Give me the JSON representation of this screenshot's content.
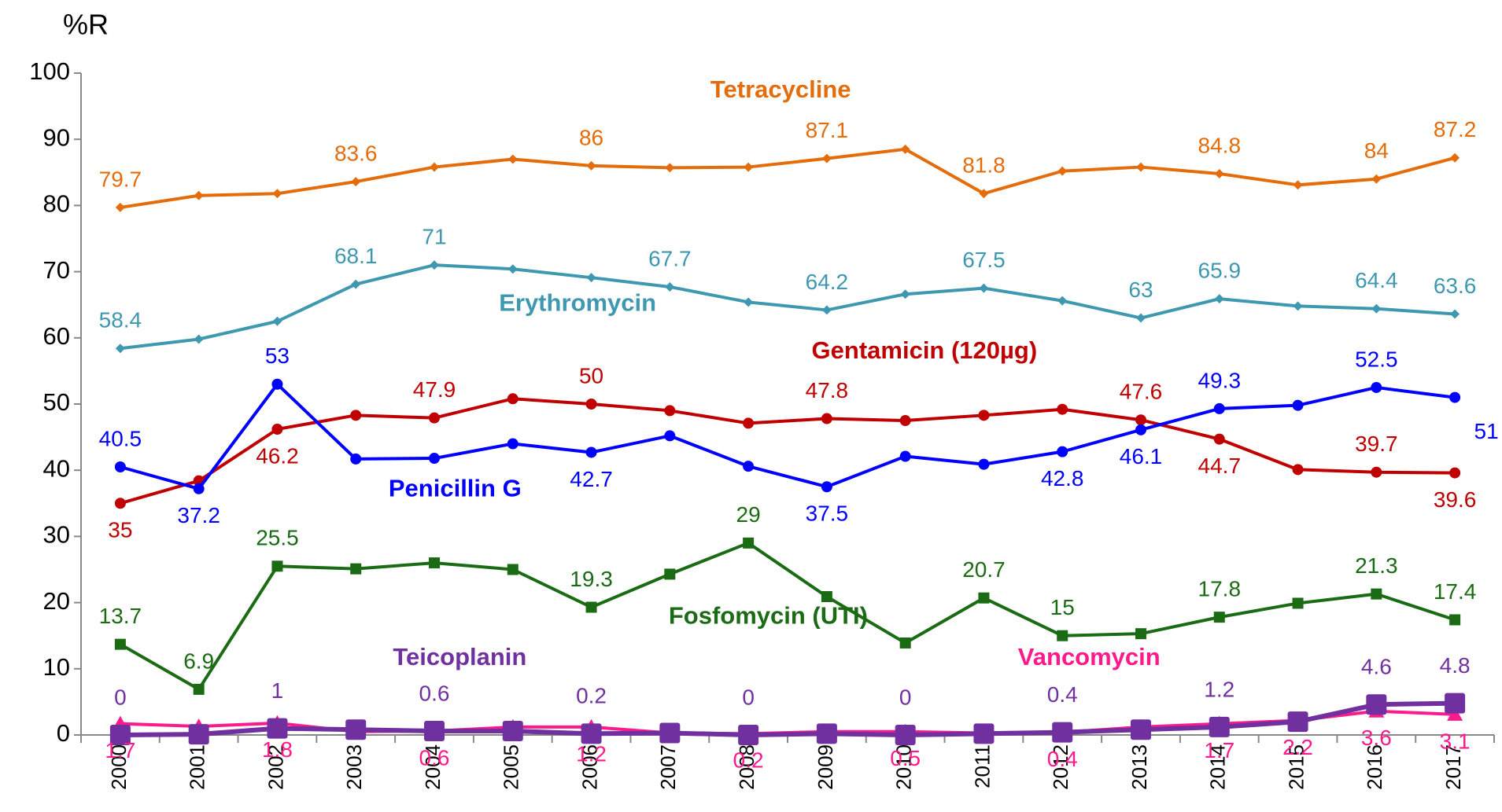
{
  "chart_data": {
    "type": "line",
    "y_label": "%R",
    "categories": [
      "2000",
      "2001",
      "2002",
      "2003",
      "2004",
      "2005",
      "2006",
      "2007",
      "2008",
      "2009",
      "2010",
      "2011",
      "2012",
      "2013",
      "2014",
      "2015",
      "2016",
      "2017"
    ],
    "ylim": [
      0,
      100
    ],
    "yticks": [
      0,
      10,
      20,
      30,
      40,
      50,
      60,
      70,
      80,
      90,
      100
    ],
    "series": [
      {
        "name": "Tetracycline",
        "color": "#e46c0a",
        "marker": "diamond",
        "values": [
          79.7,
          81.5,
          81.8,
          83.6,
          85.8,
          87.0,
          86,
          85.7,
          85.8,
          87.1,
          88.5,
          81.8,
          85.2,
          85.8,
          84.8,
          83.1,
          84,
          87.2
        ],
        "value_labels": [
          "79.7",
          null,
          null,
          "83.6",
          null,
          null,
          "86",
          null,
          null,
          "87.1",
          null,
          "81.8",
          null,
          null,
          "84.8",
          null,
          "84",
          "87.2"
        ]
      },
      {
        "name": "Erythromycin",
        "color": "#3e98b0",
        "marker": "diamond",
        "values": [
          58.4,
          59.8,
          62.5,
          68.1,
          71,
          70.4,
          69.1,
          67.7,
          65.4,
          64.2,
          66.6,
          67.5,
          65.6,
          63,
          65.9,
          64.8,
          64.4,
          63.6
        ],
        "value_labels": [
          "58.4",
          null,
          null,
          "68.1",
          "71",
          null,
          null,
          "67.7",
          null,
          "64.2",
          null,
          "67.5",
          null,
          "63",
          "65.9",
          null,
          "64.4",
          "63.6"
        ]
      },
      {
        "name": "Gentamicin (120µg)",
        "color": "#c00000",
        "marker": "circle",
        "values": [
          35,
          38.4,
          46.2,
          48.3,
          47.9,
          50.8,
          50,
          49,
          47.1,
          47.8,
          47.5,
          48.3,
          49.2,
          47.6,
          44.7,
          40.1,
          39.7,
          39.6
        ],
        "value_labels": [
          "35",
          null,
          "46.2",
          null,
          "47.9",
          null,
          "50",
          null,
          null,
          "47.8",
          null,
          null,
          null,
          "47.6",
          "44.7",
          null,
          "39.7",
          "39.6"
        ]
      },
      {
        "name": "Penicillin G",
        "color": "#0000ff",
        "marker": "circle",
        "values": [
          40.5,
          37.2,
          53,
          41.7,
          41.8,
          44,
          42.7,
          45.2,
          40.6,
          37.5,
          42.1,
          40.9,
          42.8,
          46.1,
          49.3,
          49.8,
          52.5,
          51
        ],
        "value_labels": [
          "40.5",
          "37.2",
          "53",
          null,
          null,
          null,
          "42.7",
          null,
          null,
          "37.5",
          null,
          null,
          "42.8",
          "46.1",
          "49.3",
          null,
          "52.5",
          "51"
        ]
      },
      {
        "name": "Fosfomycin (UTI)",
        "color": "#1a6b14",
        "marker": "square",
        "values": [
          13.7,
          6.9,
          25.5,
          25.1,
          26,
          25,
          19.3,
          24.3,
          29,
          20.9,
          13.9,
          20.7,
          15,
          15.3,
          17.8,
          19.9,
          21.3,
          17.4
        ],
        "value_labels": [
          "13.7",
          "6.9",
          "25.5",
          null,
          null,
          null,
          "19.3",
          null,
          "29",
          null,
          null,
          "20.7",
          "15",
          null,
          "17.8",
          null,
          "21.3",
          "17.4"
        ]
      },
      {
        "name": "Vancomycin",
        "color": "#ff1a8c",
        "marker": "triangle",
        "values": [
          1.7,
          1.3,
          1.8,
          0.5,
          0.6,
          1.2,
          1.2,
          0.3,
          0.2,
          0.5,
          0.5,
          0.3,
          0.4,
          1.2,
          1.7,
          2.2,
          3.6,
          3.1
        ],
        "value_labels": [
          "1.7",
          null,
          "1.8",
          null,
          "0.6",
          null,
          "1.2",
          null,
          "0.2",
          null,
          "0.5",
          null,
          "0.4",
          null,
          "1.7",
          "2.2",
          "3.6",
          "3.1"
        ]
      },
      {
        "name": "Teicoplanin",
        "color": "#7030a0",
        "marker": "bigsquare",
        "values": [
          0,
          0.1,
          1,
          0.8,
          0.6,
          0.6,
          0.2,
          0.3,
          0,
          0.2,
          0,
          0.2,
          0.4,
          0.8,
          1.2,
          2,
          4.6,
          4.8
        ],
        "value_labels": [
          "0",
          null,
          "1",
          null,
          "0.6",
          null,
          "0.2",
          null,
          "0",
          null,
          "0",
          null,
          "0.4",
          null,
          "1.2",
          null,
          "4.6",
          "4.8"
        ]
      }
    ]
  }
}
